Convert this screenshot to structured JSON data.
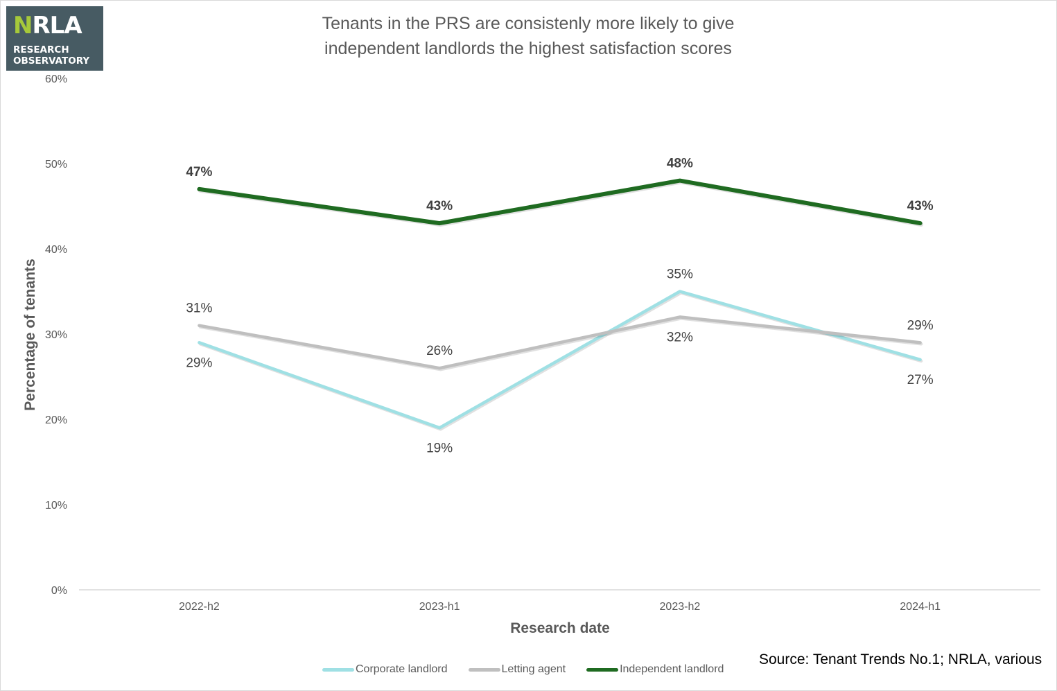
{
  "logo": {
    "word_prefix": "N",
    "word_rest": "RLA",
    "line1": "RESEARCH",
    "line2": "OBSERVATORY",
    "colors": {
      "background": "#475b63",
      "accent": "#a6c93a",
      "text": "#ffffff"
    }
  },
  "title_lines": [
    "Tenants in the PRS are consistenly more likely to give",
    "independent landlords the highest satisfaction scores"
  ],
  "source": "Source: Tenant Trends No.1; NRLA, various",
  "chart_data": {
    "type": "line",
    "title": "Tenants in the PRS are consistenly more likely to give independent landlords the highest satisfaction scores",
    "xlabel": "Research date",
    "ylabel": "Percentage of tenants",
    "categories": [
      "2022-h2",
      "2023-h1",
      "2023-h2",
      "2024-h1"
    ],
    "ylim": [
      0,
      60
    ],
    "yticks": [
      0,
      10,
      20,
      30,
      40,
      50,
      60
    ],
    "ytick_labels": [
      "0%",
      "10%",
      "20%",
      "30%",
      "40%",
      "50%",
      "60%"
    ],
    "grid": false,
    "legend_position": "bottom",
    "series": [
      {
        "name": "Corporate landlord",
        "color": "#9fe0e4",
        "values": [
          29,
          19,
          35,
          27
        ],
        "labels": [
          "29%",
          "19%",
          "35%",
          "27%"
        ],
        "label_positions": [
          "below",
          "below",
          "above",
          "below"
        ],
        "bold_labels": false
      },
      {
        "name": "Letting agent",
        "color": "#bfbfbf",
        "values": [
          31,
          26,
          32,
          29
        ],
        "labels": [
          "31%",
          "26%",
          "32%",
          "29%"
        ],
        "label_positions": [
          "above",
          "above",
          "below",
          "above"
        ],
        "bold_labels": false
      },
      {
        "name": "Independent landlord",
        "color": "#1f6b21",
        "values": [
          47,
          43,
          48,
          43
        ],
        "labels": [
          "47%",
          "43%",
          "48%",
          "43%"
        ],
        "label_positions": [
          "above",
          "above",
          "above",
          "above"
        ],
        "bold_labels": true
      }
    ]
  }
}
